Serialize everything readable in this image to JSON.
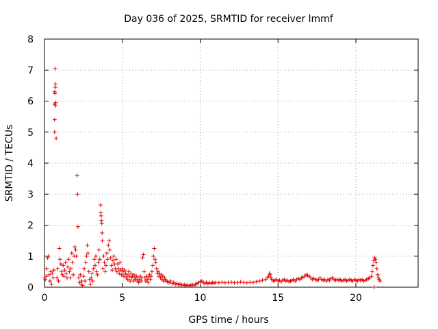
{
  "chart_data": {
    "type": "scatter",
    "title": "Day 036 of 2025, SRMTID for receiver lmmf",
    "xlabel": "GPS time / hours",
    "ylabel": "SRMTID / TECUs",
    "xlim": [
      0,
      24
    ],
    "ylim": [
      0,
      8
    ],
    "xticks": [
      0,
      5,
      10,
      15,
      20
    ],
    "yticks": [
      0,
      1,
      2,
      3,
      4,
      5,
      6,
      7,
      8
    ],
    "grid": true,
    "marker": "plus",
    "color": "#e00000",
    "series": [
      {
        "name": "SRMTID",
        "points": [
          [
            0.0,
            0.3
          ],
          [
            0.05,
            0.25
          ],
          [
            0.1,
            0.35
          ],
          [
            0.15,
            0.6
          ],
          [
            0.2,
            0.95
          ],
          [
            0.25,
            1.0
          ],
          [
            0.3,
            0.4
          ],
          [
            0.35,
            0.2
          ],
          [
            0.4,
            0.5
          ],
          [
            0.45,
            0.1
          ],
          [
            0.5,
            0.45
          ],
          [
            0.55,
            0.3
          ],
          [
            0.6,
            0.55
          ],
          [
            0.65,
            6.3
          ],
          [
            0.65,
            5.9
          ],
          [
            0.65,
            5.4
          ],
          [
            0.65,
            5.0
          ],
          [
            0.67,
            6.25
          ],
          [
            0.68,
            7.05
          ],
          [
            0.7,
            6.55
          ],
          [
            0.7,
            6.45
          ],
          [
            0.72,
            5.85
          ],
          [
            0.72,
            5.95
          ],
          [
            0.75,
            4.8
          ],
          [
            0.8,
            0.3
          ],
          [
            0.85,
            0.6
          ],
          [
            0.9,
            0.2
          ],
          [
            0.95,
            1.25
          ],
          [
            1.0,
            0.9
          ],
          [
            1.05,
            0.75
          ],
          [
            1.1,
            0.5
          ],
          [
            1.15,
            0.4
          ],
          [
            1.2,
            0.7
          ],
          [
            1.25,
            0.35
          ],
          [
            1.3,
            0.55
          ],
          [
            1.35,
            0.8
          ],
          [
            1.4,
            0.45
          ],
          [
            1.45,
            0.3
          ],
          [
            1.5,
            0.65
          ],
          [
            1.55,
            0.9
          ],
          [
            1.6,
            0.5
          ],
          [
            1.65,
            0.3
          ],
          [
            1.7,
            0.6
          ],
          [
            1.75,
            1.1
          ],
          [
            1.8,
            0.8
          ],
          [
            1.85,
            0.4
          ],
          [
            1.9,
            1.0
          ],
          [
            1.95,
            1.3
          ],
          [
            2.0,
            1.2
          ],
          [
            2.05,
            1.0
          ],
          [
            2.1,
            3.6
          ],
          [
            2.12,
            3.0
          ],
          [
            2.15,
            1.95
          ],
          [
            2.2,
            0.3
          ],
          [
            2.25,
            0.15
          ],
          [
            2.3,
            0.4
          ],
          [
            2.35,
            0.1
          ],
          [
            2.4,
            0.2
          ],
          [
            2.45,
            0.05
          ],
          [
            2.5,
            0.35
          ],
          [
            2.55,
            0.6
          ],
          [
            2.6,
            0.2
          ],
          [
            2.65,
            0.8
          ],
          [
            2.7,
            1.0
          ],
          [
            2.75,
            1.35
          ],
          [
            2.8,
            1.1
          ],
          [
            2.85,
            0.5
          ],
          [
            2.9,
            0.25
          ],
          [
            2.95,
            0.1
          ],
          [
            3.0,
            0.3
          ],
          [
            3.05,
            0.45
          ],
          [
            3.1,
            0.2
          ],
          [
            3.15,
            0.6
          ],
          [
            3.2,
            0.9
          ],
          [
            3.25,
            0.7
          ],
          [
            3.3,
            1.0
          ],
          [
            3.35,
            0.5
          ],
          [
            3.4,
            0.4
          ],
          [
            3.45,
            0.8
          ],
          [
            3.5,
            1.2
          ],
          [
            3.55,
            0.9
          ],
          [
            3.6,
            2.65
          ],
          [
            3.62,
            2.4
          ],
          [
            3.64,
            2.3
          ],
          [
            3.66,
            2.15
          ],
          [
            3.68,
            2.05
          ],
          [
            3.7,
            1.75
          ],
          [
            3.72,
            1.5
          ],
          [
            3.75,
            0.6
          ],
          [
            3.8,
            1.0
          ],
          [
            3.85,
            0.8
          ],
          [
            3.9,
            0.5
          ],
          [
            3.95,
            0.7
          ],
          [
            4.0,
            1.1
          ],
          [
            4.05,
            0.9
          ],
          [
            4.1,
            1.35
          ],
          [
            4.15,
            1.5
          ],
          [
            4.2,
            1.2
          ],
          [
            4.25,
            0.95
          ],
          [
            4.3,
            0.7
          ],
          [
            4.35,
            0.55
          ],
          [
            4.4,
            0.85
          ],
          [
            4.45,
            1.0
          ],
          [
            4.5,
            0.75
          ],
          [
            4.55,
            0.6
          ],
          [
            4.6,
            0.9
          ],
          [
            4.65,
            0.5
          ],
          [
            4.7,
            0.75
          ],
          [
            4.75,
            0.6
          ],
          [
            4.8,
            0.45
          ],
          [
            4.85,
            0.8
          ],
          [
            4.9,
            0.55
          ],
          [
            4.95,
            0.4
          ],
          [
            5.0,
            0.6
          ],
          [
            5.05,
            0.5
          ],
          [
            5.1,
            0.35
          ],
          [
            5.15,
            0.55
          ],
          [
            5.2,
            0.45
          ],
          [
            5.25,
            0.3
          ],
          [
            5.3,
            0.4
          ],
          [
            5.35,
            0.25
          ],
          [
            5.4,
            0.5
          ],
          [
            5.45,
            0.35
          ],
          [
            5.5,
            0.2
          ],
          [
            5.55,
            0.45
          ],
          [
            5.6,
            0.3
          ],
          [
            5.65,
            0.35
          ],
          [
            5.7,
            0.2
          ],
          [
            5.75,
            0.4
          ],
          [
            5.8,
            0.3
          ],
          [
            5.85,
            0.25
          ],
          [
            5.9,
            0.35
          ],
          [
            5.95,
            0.2
          ],
          [
            6.0,
            0.3
          ],
          [
            6.05,
            0.15
          ],
          [
            6.1,
            0.25
          ],
          [
            6.15,
            0.35
          ],
          [
            6.2,
            0.2
          ],
          [
            6.25,
            0.3
          ],
          [
            6.3,
            0.95
          ],
          [
            6.35,
            1.05
          ],
          [
            6.4,
            0.5
          ],
          [
            6.45,
            0.3
          ],
          [
            6.5,
            0.2
          ],
          [
            6.55,
            0.35
          ],
          [
            6.6,
            0.25
          ],
          [
            6.65,
            0.15
          ],
          [
            6.7,
            0.3
          ],
          [
            6.75,
            0.4
          ],
          [
            6.8,
            0.25
          ],
          [
            6.85,
            0.35
          ],
          [
            6.9,
            0.5
          ],
          [
            6.95,
            0.7
          ],
          [
            7.0,
            1.0
          ],
          [
            7.05,
            1.25
          ],
          [
            7.1,
            0.9
          ],
          [
            7.15,
            0.8
          ],
          [
            7.2,
            0.6
          ],
          [
            7.25,
            0.45
          ],
          [
            7.3,
            0.5
          ],
          [
            7.35,
            0.35
          ],
          [
            7.4,
            0.45
          ],
          [
            7.45,
            0.3
          ],
          [
            7.5,
            0.4
          ],
          [
            7.55,
            0.25
          ],
          [
            7.6,
            0.35
          ],
          [
            7.65,
            0.2
          ],
          [
            7.7,
            0.3
          ],
          [
            7.75,
            0.25
          ],
          [
            7.8,
            0.2
          ],
          [
            7.9,
            0.18
          ],
          [
            8.0,
            0.15
          ],
          [
            8.1,
            0.2
          ],
          [
            8.2,
            0.12
          ],
          [
            8.3,
            0.15
          ],
          [
            8.4,
            0.1
          ],
          [
            8.5,
            0.12
          ],
          [
            8.6,
            0.08
          ],
          [
            8.7,
            0.1
          ],
          [
            8.8,
            0.08
          ],
          [
            8.9,
            0.06
          ],
          [
            9.0,
            0.08
          ],
          [
            9.1,
            0.05
          ],
          [
            9.2,
            0.07
          ],
          [
            9.3,
            0.05
          ],
          [
            9.4,
            0.06
          ],
          [
            9.5,
            0.08
          ],
          [
            9.6,
            0.06
          ],
          [
            9.7,
            0.1
          ],
          [
            9.8,
            0.12
          ],
          [
            9.9,
            0.15
          ],
          [
            10.0,
            0.18
          ],
          [
            10.1,
            0.2
          ],
          [
            10.2,
            0.15
          ],
          [
            10.3,
            0.12
          ],
          [
            10.4,
            0.15
          ],
          [
            10.5,
            0.12
          ],
          [
            10.6,
            0.14
          ],
          [
            10.7,
            0.12
          ],
          [
            10.8,
            0.15
          ],
          [
            10.9,
            0.13
          ],
          [
            11.0,
            0.15
          ],
          [
            11.2,
            0.14
          ],
          [
            11.4,
            0.16
          ],
          [
            11.6,
            0.14
          ],
          [
            11.8,
            0.15
          ],
          [
            12.0,
            0.16
          ],
          [
            12.2,
            0.14
          ],
          [
            12.4,
            0.15
          ],
          [
            12.6,
            0.17
          ],
          [
            12.8,
            0.15
          ],
          [
            13.0,
            0.14
          ],
          [
            13.2,
            0.16
          ],
          [
            13.4,
            0.15
          ],
          [
            13.6,
            0.18
          ],
          [
            13.8,
            0.2
          ],
          [
            14.0,
            0.22
          ],
          [
            14.2,
            0.25
          ],
          [
            14.3,
            0.3
          ],
          [
            14.4,
            0.35
          ],
          [
            14.45,
            0.45
          ],
          [
            14.5,
            0.4
          ],
          [
            14.55,
            0.3
          ],
          [
            14.6,
            0.25
          ],
          [
            14.7,
            0.2
          ],
          [
            14.8,
            0.22
          ],
          [
            14.9,
            0.25
          ],
          [
            15.0,
            0.2
          ],
          [
            15.1,
            0.22
          ],
          [
            15.2,
            0.18
          ],
          [
            15.3,
            0.22
          ],
          [
            15.4,
            0.25
          ],
          [
            15.5,
            0.2
          ],
          [
            15.6,
            0.22
          ],
          [
            15.7,
            0.18
          ],
          [
            15.8,
            0.2
          ],
          [
            15.9,
            0.22
          ],
          [
            16.0,
            0.25
          ],
          [
            16.1,
            0.2
          ],
          [
            16.2,
            0.25
          ],
          [
            16.3,
            0.28
          ],
          [
            16.4,
            0.25
          ],
          [
            16.5,
            0.3
          ],
          [
            16.6,
            0.32
          ],
          [
            16.7,
            0.35
          ],
          [
            16.8,
            0.4
          ],
          [
            16.9,
            0.38
          ],
          [
            17.0,
            0.35
          ],
          [
            17.1,
            0.3
          ],
          [
            17.2,
            0.25
          ],
          [
            17.3,
            0.28
          ],
          [
            17.4,
            0.25
          ],
          [
            17.5,
            0.22
          ],
          [
            17.6,
            0.25
          ],
          [
            17.7,
            0.3
          ],
          [
            17.8,
            0.25
          ],
          [
            17.9,
            0.22
          ],
          [
            18.0,
            0.25
          ],
          [
            18.1,
            0.2
          ],
          [
            18.2,
            0.25
          ],
          [
            18.3,
            0.22
          ],
          [
            18.4,
            0.28
          ],
          [
            18.5,
            0.3
          ],
          [
            18.6,
            0.25
          ],
          [
            18.7,
            0.22
          ],
          [
            18.8,
            0.25
          ],
          [
            18.9,
            0.22
          ],
          [
            19.0,
            0.25
          ],
          [
            19.1,
            0.2
          ],
          [
            19.2,
            0.22
          ],
          [
            19.3,
            0.25
          ],
          [
            19.4,
            0.2
          ],
          [
            19.5,
            0.22
          ],
          [
            19.6,
            0.25
          ],
          [
            19.7,
            0.22
          ],
          [
            19.8,
            0.2
          ],
          [
            19.9,
            0.25
          ],
          [
            20.0,
            0.22
          ],
          [
            20.1,
            0.2
          ],
          [
            20.2,
            0.25
          ],
          [
            20.3,
            0.22
          ],
          [
            20.4,
            0.25
          ],
          [
            20.5,
            0.2
          ],
          [
            20.6,
            0.22
          ],
          [
            20.7,
            0.25
          ],
          [
            20.8,
            0.28
          ],
          [
            20.9,
            0.3
          ],
          [
            21.0,
            0.35
          ],
          [
            21.05,
            0.5
          ],
          [
            21.1,
            0.7
          ],
          [
            21.15,
            0.85
          ],
          [
            21.2,
            0.95
          ],
          [
            21.25,
            0.9
          ],
          [
            21.3,
            0.8
          ],
          [
            21.35,
            0.6
          ],
          [
            21.4,
            0.4
          ],
          [
            21.45,
            0.3
          ],
          [
            21.5,
            0.25
          ],
          [
            21.55,
            0.2
          ],
          [
            21.18,
            0.0
          ]
        ]
      }
    ]
  }
}
